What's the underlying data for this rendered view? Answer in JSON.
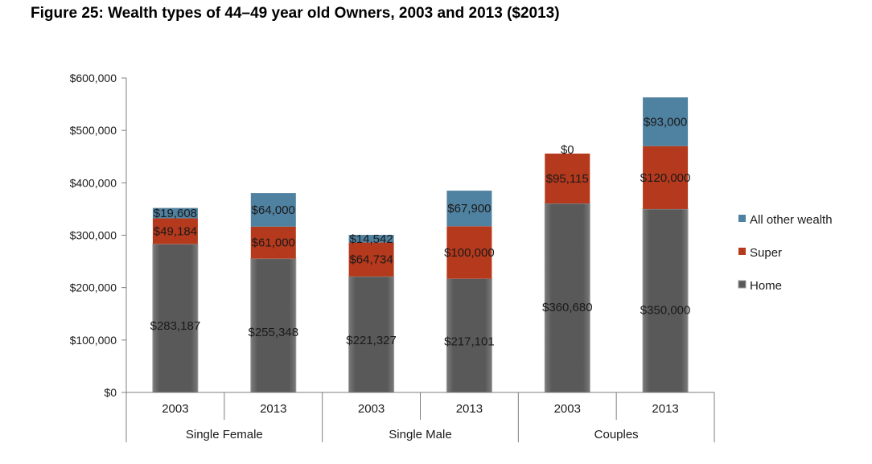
{
  "title": "Figure 25: Wealth types of 44–49 year old Owners, 2003 and 2013 ($2013)",
  "chart_data": {
    "type": "bar",
    "stacked": true,
    "ylim": [
      0,
      600000
    ],
    "yticks": [
      0,
      100000,
      200000,
      300000,
      400000,
      500000,
      600000
    ],
    "ytick_labels": [
      "$0",
      "$100,000",
      "$200,000",
      "$300,000",
      "$400,000",
      "$500,000",
      "$600,000"
    ],
    "groups": [
      {
        "label": "Single Female",
        "categories": [
          "2003",
          "2013"
        ]
      },
      {
        "label": "Single Male",
        "categories": [
          "2003",
          "2013"
        ]
      },
      {
        "label": "Couples",
        "categories": [
          "2003",
          "2013"
        ]
      }
    ],
    "categories": [
      "2003",
      "2013",
      "2003",
      "2013",
      "2003",
      "2013"
    ],
    "series": [
      {
        "name": "Home",
        "color": "#595959",
        "values": [
          283187,
          255348,
          221327,
          217101,
          360680,
          350000
        ],
        "labels": [
          "$283,187",
          "$255,348",
          "$221,327",
          "$217,101",
          "$360,680",
          "$350,000"
        ]
      },
      {
        "name": "Super",
        "color": "#b5391c",
        "values": [
          49184,
          61000,
          64734,
          100000,
          95115,
          120000
        ],
        "labels": [
          "$49,184",
          "$61,000",
          "$64,734",
          "$100,000",
          "$95,115",
          "$120,000"
        ]
      },
      {
        "name": "All other wealth",
        "color": "#4f81a0",
        "values": [
          19608,
          64000,
          14542,
          67900,
          0,
          93000
        ],
        "labels": [
          "$19,608",
          "$64,000",
          "$14,542",
          "$67,900",
          "$0",
          "$93,000"
        ]
      }
    ],
    "legend": {
      "position": "right",
      "order": [
        "All other wealth",
        "Super",
        "Home"
      ]
    },
    "grid": false
  }
}
